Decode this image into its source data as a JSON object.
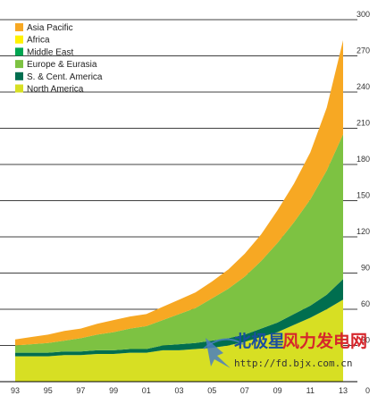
{
  "chart_data": {
    "type": "area",
    "stacked": true,
    "x": [
      1993,
      1994,
      1995,
      1996,
      1997,
      1998,
      1999,
      2000,
      2001,
      2002,
      2003,
      2004,
      2005,
      2006,
      2007,
      2008,
      2009,
      2010,
      2011,
      2012,
      2013
    ],
    "x_tick_labels": [
      "93",
      "95",
      "97",
      "99",
      "01",
      "03",
      "05",
      "07",
      "09",
      "11",
      "13"
    ],
    "y_ticks": [
      0,
      30,
      60,
      90,
      120,
      150,
      180,
      210,
      240,
      270,
      300
    ],
    "ylim": [
      0,
      300
    ],
    "grid": "horizontal",
    "legend_position": "top-left",
    "series": [
      {
        "name": "North America",
        "color": "#d7df23",
        "values": [
          21,
          21,
          21,
          22,
          22,
          23,
          23,
          24,
          24,
          26,
          26,
          27,
          28,
          30,
          33,
          37,
          41,
          47,
          53,
          60,
          68
        ]
      },
      {
        "name": "S. & Cent. America",
        "color": "#006e4f",
        "values": [
          3,
          3,
          3,
          3,
          3,
          3,
          3,
          3,
          3,
          4,
          5,
          5,
          6,
          6,
          6,
          7,
          8,
          9,
          10,
          12,
          17
        ]
      },
      {
        "name": "Europe & Eurasia",
        "color": "#7dc242",
        "values": [
          6,
          7,
          8,
          9,
          11,
          13,
          15,
          17,
          19,
          21,
          25,
          29,
          35,
          41,
          48,
          56,
          66,
          76,
          88,
          103,
          120
        ]
      },
      {
        "name": "Middle East",
        "color": "#00a651",
        "values": [
          0,
          0,
          0,
          0,
          0,
          0,
          0,
          0,
          0,
          0,
          0,
          0,
          0,
          0,
          0,
          0,
          0,
          0,
          0,
          0,
          0
        ]
      },
      {
        "name": "Africa",
        "color": "#fff200",
        "values": [
          0,
          0,
          0,
          0,
          0,
          0,
          0,
          0,
          0,
          0,
          0,
          0,
          0,
          0,
          0,
          0,
          0,
          0,
          0,
          0,
          0
        ]
      },
      {
        "name": "Asia Pacific",
        "color": "#f7a823",
        "values": [
          5,
          6,
          7,
          8,
          8,
          9,
          10,
          10,
          10,
          11,
          12,
          13,
          14,
          16,
          19,
          22,
          27,
          32,
          39,
          52,
          78
        ]
      }
    ]
  },
  "watermark": {
    "text_blue": "北极星",
    "text_red": "风力发电网",
    "url": "http://fd.bjx.com.cn",
    "colors": {
      "blue": "#1a4fa0",
      "red": "#d6262c"
    }
  }
}
